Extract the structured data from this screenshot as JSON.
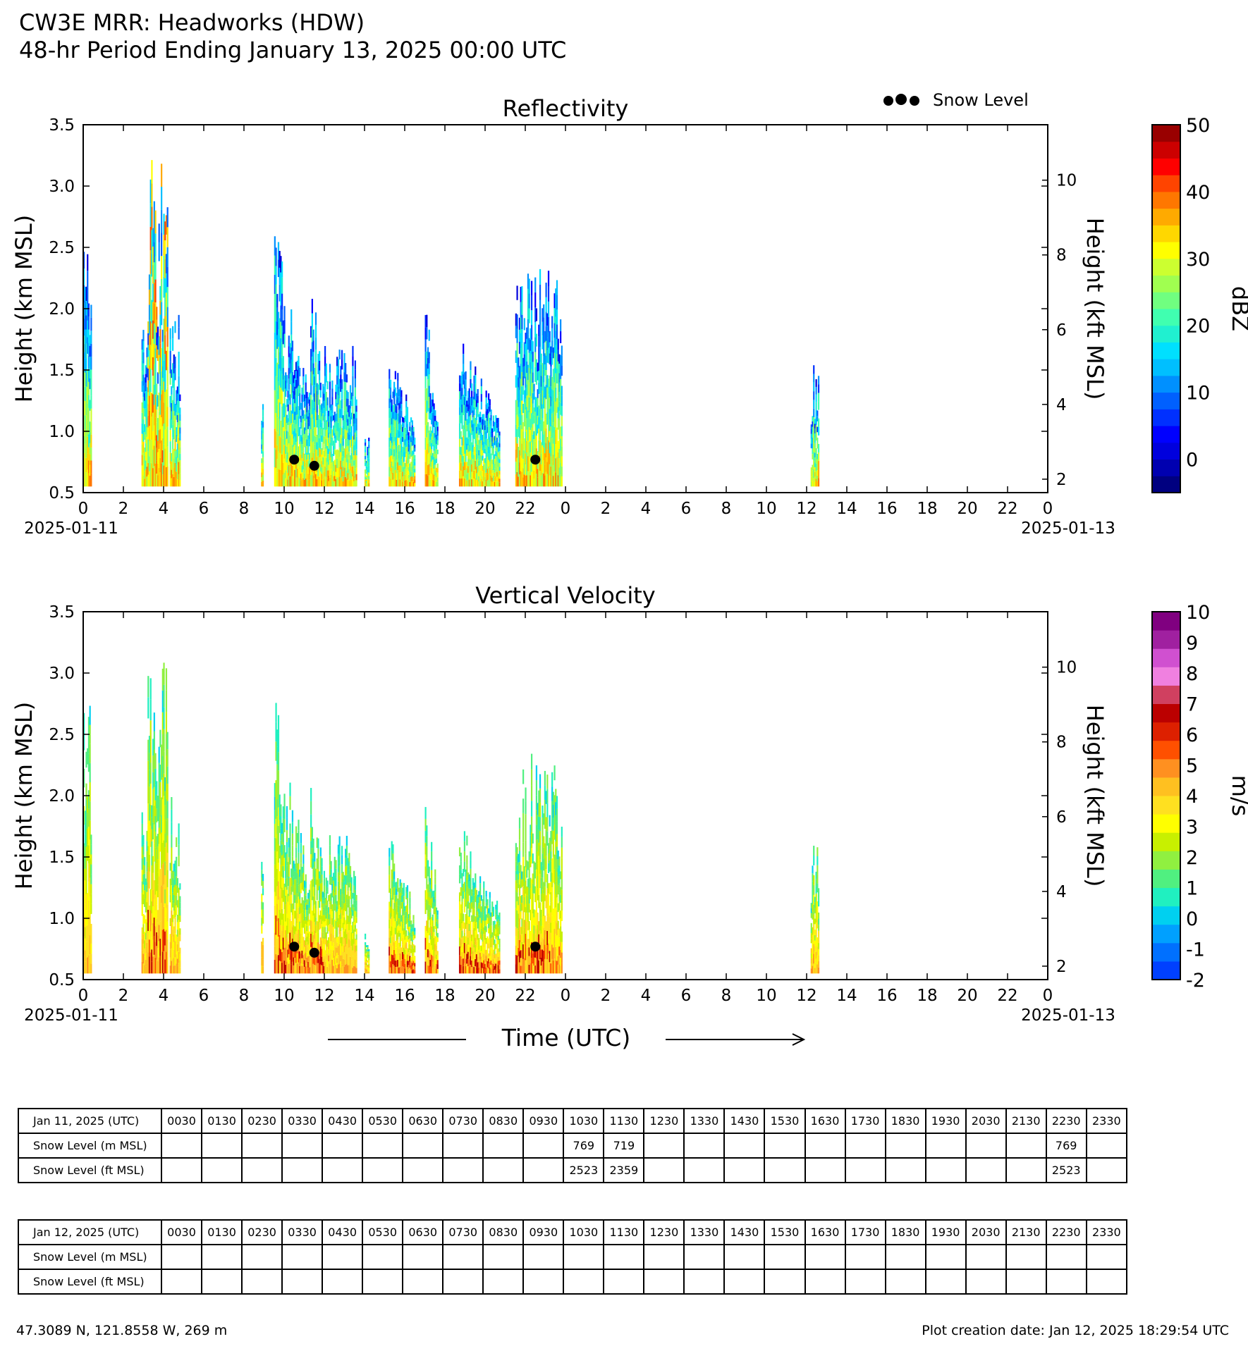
{
  "header": {
    "line1": "CW3E MRR: Headworks (HDW)",
    "line2": "48-hr Period Ending January 13, 2025 00:00 UTC"
  },
  "chart_data": [
    {
      "type": "heatmap",
      "title": "Reflectivity",
      "ylabel": "Height (km MSL)",
      "ylabel_right": "Height (kft MSL)",
      "ylim": [
        0.5,
        3.5
      ],
      "yticks": [
        "0.5",
        "1.0",
        "1.5",
        "2.0",
        "2.5",
        "3.0",
        "3.5"
      ],
      "yticks_right": [
        "2",
        "4",
        "6",
        "8",
        "10"
      ],
      "xticks": [
        "0",
        "2",
        "4",
        "6",
        "8",
        "10",
        "12",
        "14",
        "16",
        "18",
        "20",
        "22",
        "0",
        "2",
        "4",
        "6",
        "8",
        "10",
        "12",
        "14",
        "16",
        "18",
        "20",
        "22",
        "0"
      ],
      "date_start": "2025-01-11",
      "date_end": "2025-01-13",
      "colorbar": {
        "label": "dBZ",
        "ticks": [
          "0",
          "10",
          "20",
          "30",
          "40",
          "50"
        ]
      },
      "legend": {
        "label": "Snow Level",
        "position": "top-right"
      },
      "snow_level_points": [
        {
          "hour": 10.5,
          "km": 0.769
        },
        {
          "hour": 11.5,
          "km": 0.719
        },
        {
          "hour": 22.5,
          "km": 0.769
        }
      ]
    },
    {
      "type": "heatmap",
      "title": "Vertical Velocity",
      "ylabel": "Height (km MSL)",
      "ylabel_right": "Height (kft MSL)",
      "xlabel": "Time (UTC)",
      "ylim": [
        0.5,
        3.5
      ],
      "yticks": [
        "0.5",
        "1.0",
        "1.5",
        "2.0",
        "2.5",
        "3.0",
        "3.5"
      ],
      "yticks_right": [
        "2",
        "4",
        "6",
        "8",
        "10"
      ],
      "xticks": [
        "0",
        "2",
        "4",
        "6",
        "8",
        "10",
        "12",
        "14",
        "16",
        "18",
        "20",
        "22",
        "0",
        "2",
        "4",
        "6",
        "8",
        "10",
        "12",
        "14",
        "16",
        "18",
        "20",
        "22",
        "0"
      ],
      "date_start": "2025-01-11",
      "date_end": "2025-01-13",
      "colorbar": {
        "label": "m/s",
        "ticks": [
          "-2",
          "-1",
          "0",
          "1",
          "2",
          "3",
          "4",
          "5",
          "6",
          "7",
          "8",
          "9",
          "10"
        ]
      },
      "snow_level_points": [
        {
          "hour": 10.5,
          "km": 0.769
        },
        {
          "hour": 11.5,
          "km": 0.719
        },
        {
          "hour": 22.5,
          "km": 0.769
        }
      ]
    }
  ],
  "tables": [
    {
      "header_label": "Jan 11, 2025 (UTC)",
      "times": [
        "0030",
        "0130",
        "0230",
        "0330",
        "0430",
        "0530",
        "0630",
        "0730",
        "0830",
        "0930",
        "1030",
        "1130",
        "1230",
        "1330",
        "1430",
        "1530",
        "1630",
        "1730",
        "1830",
        "1930",
        "2030",
        "2130",
        "2230",
        "2330"
      ],
      "rows": [
        {
          "label": "Snow Level (m MSL)",
          "values": [
            "",
            "",
            "",
            "",
            "",
            "",
            "",
            "",
            "",
            "",
            "769",
            "719",
            "",
            "",
            "",
            "",
            "",
            "",
            "",
            "",
            "",
            "",
            "769",
            ""
          ]
        },
        {
          "label": "Snow Level (ft MSL)",
          "values": [
            "",
            "",
            "",
            "",
            "",
            "",
            "",
            "",
            "",
            "",
            "2523",
            "2359",
            "",
            "",
            "",
            "",
            "",
            "",
            "",
            "",
            "",
            "",
            "2523",
            ""
          ]
        }
      ]
    },
    {
      "header_label": "Jan 12, 2025 (UTC)",
      "times": [
        "0030",
        "0130",
        "0230",
        "0330",
        "0430",
        "0530",
        "0630",
        "0730",
        "0830",
        "0930",
        "1030",
        "1130",
        "1230",
        "1330",
        "1430",
        "1530",
        "1630",
        "1730",
        "1830",
        "1930",
        "2030",
        "2130",
        "2230",
        "2330"
      ],
      "rows": [
        {
          "label": "Snow Level (m MSL)",
          "values": [
            "",
            "",
            "",
            "",
            "",
            "",
            "",
            "",
            "",
            "",
            "",
            "",
            "",
            "",
            "",
            "",
            "",
            "",
            "",
            "",
            "",
            "",
            "",
            ""
          ]
        },
        {
          "label": "Snow Level (ft MSL)",
          "values": [
            "",
            "",
            "",
            "",
            "",
            "",
            "",
            "",
            "",
            "",
            "",
            "",
            "",
            "",
            "",
            "",
            "",
            "",
            "",
            "",
            "",
            "",
            "",
            ""
          ]
        }
      ]
    }
  ],
  "footer": {
    "location": "47.3089 N, 121.8558 W, 269 m",
    "created": "Plot creation date: Jan 12, 2025 18:29:54 UTC"
  },
  "colors": {
    "dbz_scale": [
      "#000080",
      "#0000b0",
      "#0000dd",
      "#0000ff",
      "#0030ff",
      "#0060ff",
      "#0090ff",
      "#00bfff",
      "#00e0ff",
      "#20f0d0",
      "#40ffb0",
      "#70ff80",
      "#a0ff50",
      "#ccff30",
      "#ffff00",
      "#ffd700",
      "#ffaa00",
      "#ff7700",
      "#ff4400",
      "#ff0000",
      "#cc0000",
      "#990000"
    ],
    "vv_scale": [
      "#0040ff",
      "#0070ff",
      "#00a0ff",
      "#00d0f0",
      "#20f0c0",
      "#50f080",
      "#90f040",
      "#c8f000",
      "#ffff00",
      "#ffe020",
      "#ffc020",
      "#ff9020",
      "#ff5000",
      "#dd2000",
      "#bb0000",
      "#d04060",
      "#f080e0",
      "#d050d0",
      "#a020a0",
      "#800080"
    ],
    "snow_dot": "#000000"
  },
  "arrow": {
    "direction": "right"
  }
}
